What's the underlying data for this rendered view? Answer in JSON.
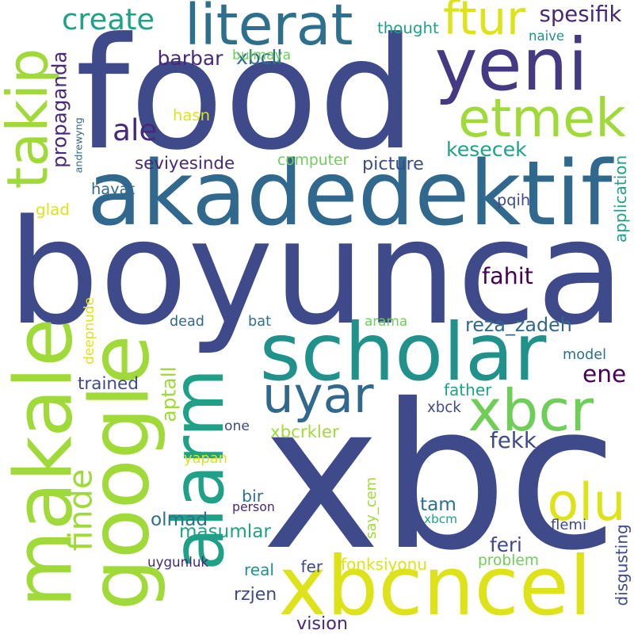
{
  "palette": {
    "navy": "#3e4a89",
    "indigo": "#443983",
    "blue": "#31688e",
    "steel": "#2d708e",
    "teal": "#21918c",
    "sea": "#1fa188",
    "green": "#35b779",
    "lime": "#6ece58",
    "yellowgreen": "#a0da39",
    "yellow": "#dde318",
    "deep": "#440154",
    "plum": "#482878"
  },
  "words": [
    {
      "id": "food",
      "text": "food",
      "color": "navy",
      "vertical": false
    },
    {
      "id": "boyunca",
      "text": "boyunca",
      "color": "navy",
      "vertical": false
    },
    {
      "id": "xbc",
      "text": "xbc",
      "color": "navy",
      "vertical": false
    },
    {
      "id": "akadedektif",
      "text": "akadedektif",
      "color": "blue",
      "vertical": false
    },
    {
      "id": "literat",
      "text": "literat",
      "color": "steel",
      "vertical": false
    },
    {
      "id": "yeni",
      "text": "yeni",
      "color": "indigo",
      "vertical": false
    },
    {
      "id": "scholar",
      "text": "scholar",
      "color": "teal",
      "vertical": false
    },
    {
      "id": "makale",
      "text": "makale",
      "color": "yellowgreen",
      "vertical": true
    },
    {
      "id": "google",
      "text": "google",
      "color": "yellowgreen",
      "vertical": true
    },
    {
      "id": "alarm",
      "text": "alarm",
      "color": "sea",
      "vertical": true
    },
    {
      "id": "xbcncel",
      "text": "xbcncel",
      "color": "yellow",
      "vertical": false
    },
    {
      "id": "etmek",
      "text": "etmek",
      "color": "yellowgreen",
      "vertical": false
    },
    {
      "id": "takip",
      "text": "takip",
      "color": "yellowgreen",
      "vertical": true
    },
    {
      "id": "xbcr",
      "text": "xbcr",
      "color": "lime",
      "vertical": false
    },
    {
      "id": "uyar",
      "text": "uyar",
      "color": "blue",
      "vertical": false
    },
    {
      "id": "ftur",
      "text": "ftur",
      "color": "yellow",
      "vertical": false
    },
    {
      "id": "olu",
      "text": "olu",
      "color": "yellow",
      "vertical": false
    },
    {
      "id": "create",
      "text": "create",
      "color": "sea",
      "vertical": false
    },
    {
      "id": "ene",
      "text": "ene",
      "color": "deep",
      "vertical": false
    },
    {
      "id": "ale",
      "text": "ale",
      "color": "plum",
      "vertical": false
    },
    {
      "id": "finde",
      "text": "finde",
      "color": "yellowgreen",
      "vertical": true
    },
    {
      "id": "spesifik",
      "text": "spesifik",
      "color": "plum",
      "vertical": false
    },
    {
      "id": "kesecek",
      "text": "kesecek",
      "color": "sea",
      "vertical": false
    },
    {
      "id": "propaganda",
      "text": "propaganda",
      "color": "plum",
      "vertical": true
    },
    {
      "id": "barbar",
      "text": "barbar",
      "color": "plum",
      "vertical": false
    },
    {
      "id": "xbcll",
      "text": "xbcll",
      "color": "steel",
      "vertical": false
    },
    {
      "id": "bulmaya",
      "text": "bulmaya",
      "color": "lime",
      "vertical": false
    },
    {
      "id": "thought",
      "text": "thought",
      "color": "sea",
      "vertical": false
    },
    {
      "id": "naive",
      "text": "naive",
      "color": "teal",
      "vertical": false
    },
    {
      "id": "hasn",
      "text": "hasn",
      "color": "yellow",
      "vertical": false
    },
    {
      "id": "andrewyng",
      "text": "andrewyng",
      "color": "blue",
      "vertical": true
    },
    {
      "id": "seviyesinde",
      "text": "seviyesinde",
      "color": "plum",
      "vertical": false
    },
    {
      "id": "computer",
      "text": "computer",
      "color": "lime",
      "vertical": false
    },
    {
      "id": "picture",
      "text": "picture",
      "color": "navy",
      "vertical": false
    },
    {
      "id": "hayat",
      "text": "hayat",
      "color": "blue",
      "vertical": false
    },
    {
      "id": "glad",
      "text": "glad",
      "color": "yellow",
      "vertical": false
    },
    {
      "id": "pqih",
      "text": "pqih",
      "color": "navy",
      "vertical": false
    },
    {
      "id": "application",
      "text": "application",
      "color": "sea",
      "vertical": true
    },
    {
      "id": "fahit",
      "text": "fahit",
      "color": "deep",
      "vertical": false
    },
    {
      "id": "deepnude",
      "text": "deepnude",
      "color": "yellow",
      "vertical": true
    },
    {
      "id": "dead",
      "text": "dead",
      "color": "blue",
      "vertical": false
    },
    {
      "id": "bat",
      "text": "bat",
      "color": "steel",
      "vertical": false
    },
    {
      "id": "arama",
      "text": "arama",
      "color": "lime",
      "vertical": false
    },
    {
      "id": "reza_zadeh",
      "text": "reza_zadeh",
      "color": "blue",
      "vertical": false
    },
    {
      "id": "model",
      "text": "model",
      "color": "steel",
      "vertical": false
    },
    {
      "id": "aptall",
      "text": "aptall",
      "color": "yellowgreen",
      "vertical": true
    },
    {
      "id": "trained",
      "text": "trained",
      "color": "navy",
      "vertical": false
    },
    {
      "id": "father",
      "text": "father",
      "color": "sea",
      "vertical": false
    },
    {
      "id": "xbck",
      "text": "xbck",
      "color": "navy",
      "vertical": false
    },
    {
      "id": "one",
      "text": "one",
      "color": "navy",
      "vertical": false
    },
    {
      "id": "xbcrkler",
      "text": "xbcrkler",
      "color": "yellowgreen",
      "vertical": false
    },
    {
      "id": "fekk",
      "text": "fekk",
      "color": "navy",
      "vertical": false
    },
    {
      "id": "yapan",
      "text": "yapan",
      "color": "yellow",
      "vertical": false
    },
    {
      "id": "say_cem",
      "text": "say_cem",
      "color": "yellowgreen",
      "vertical": true
    },
    {
      "id": "bir",
      "text": "bir",
      "color": "steel",
      "vertical": false
    },
    {
      "id": "tam",
      "text": "tam",
      "color": "steel",
      "vertical": false
    },
    {
      "id": "olmad",
      "text": "olmad",
      "color": "steel",
      "vertical": false
    },
    {
      "id": "person",
      "text": "person",
      "color": "plum",
      "vertical": false
    },
    {
      "id": "xbcm",
      "text": "xbcm",
      "color": "sea",
      "vertical": false
    },
    {
      "id": "flemi",
      "text": "flemi",
      "color": "navy",
      "vertical": false
    },
    {
      "id": "masumlar",
      "text": "masumlar",
      "color": "sea",
      "vertical": false
    },
    {
      "id": "feri",
      "text": "feri",
      "color": "navy",
      "vertical": false
    },
    {
      "id": "disgusting",
      "text": "disgusting",
      "color": "navy",
      "vertical": true
    },
    {
      "id": "uygunluk",
      "text": "uygunluk",
      "color": "plum",
      "vertical": false
    },
    {
      "id": "fonksiyonu",
      "text": "fonksiyonu",
      "color": "yellow",
      "vertical": false
    },
    {
      "id": "problem",
      "text": "problem",
      "color": "lime",
      "vertical": false
    },
    {
      "id": "real",
      "text": "real",
      "color": "teal",
      "vertical": false
    },
    {
      "id": "fer",
      "text": "fer",
      "color": "navy",
      "vertical": false
    },
    {
      "id": "rzjen",
      "text": "rzjen",
      "color": "navy",
      "vertical": false
    },
    {
      "id": "vision",
      "text": "vision",
      "color": "plum",
      "vertical": false
    }
  ]
}
